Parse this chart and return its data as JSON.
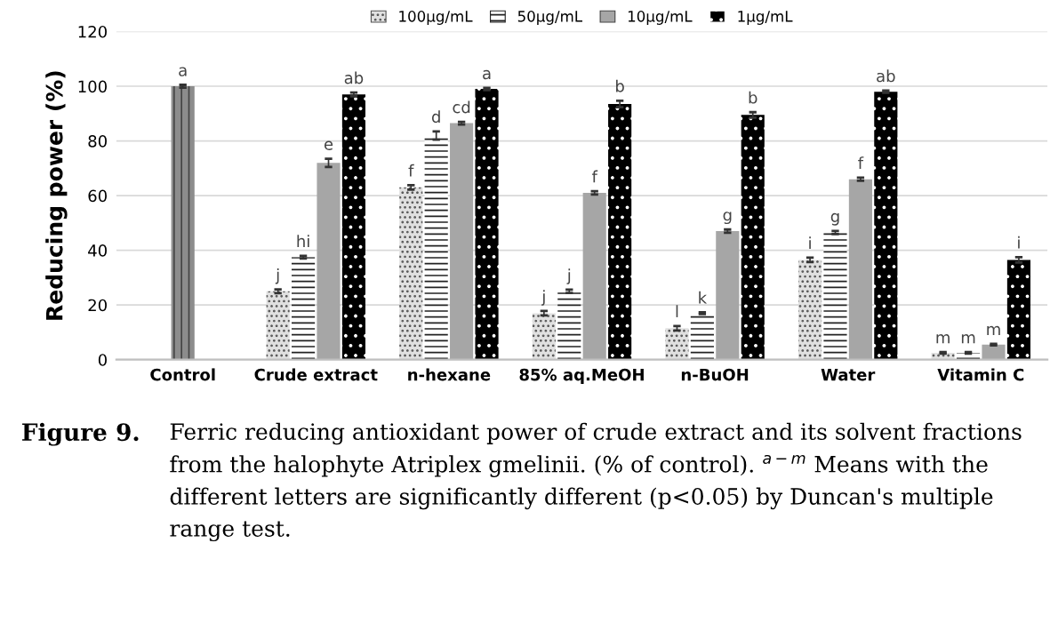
{
  "chart_data": {
    "type": "bar",
    "ylabel": "Reducing power (%)",
    "categories": [
      "Control",
      "Crude extract",
      "n-hexane",
      "85% aq.MeOH",
      "n-BuOH",
      "Water",
      "Vitamin C"
    ],
    "series": [
      {
        "color": "#8c8c8c",
        "values": [
          100,
          null,
          null,
          null,
          null,
          null,
          null
        ],
        "errors": [
          0.5,
          null,
          null,
          null,
          null,
          null,
          null
        ],
        "value_labels": [
          "a",
          null,
          null,
          null,
          null,
          null,
          null
        ]
      },
      {
        "name": "100μg/mL",
        "color": "#e0e0e0",
        "values": [
          null,
          25,
          63,
          17,
          11.5,
          36.5,
          2.5
        ],
        "errors": [
          null,
          0.7,
          0.8,
          0.8,
          0.8,
          0.8,
          0.3
        ],
        "value_labels": [
          null,
          "j",
          "f",
          "j",
          "l",
          "i",
          "m"
        ]
      },
      {
        "name": "50μg/mL",
        "color": "#ffffff",
        "values": [
          null,
          37.5,
          82,
          25,
          17,
          46.5,
          2.5
        ],
        "errors": [
          null,
          0.5,
          1.5,
          0.6,
          0.3,
          0.6,
          0.3
        ],
        "value_labels": [
          null,
          "hi",
          "d",
          "j",
          "k",
          "g",
          "m"
        ]
      },
      {
        "name": "10μg/mL",
        "color": "#a6a6a6",
        "values": [
          null,
          72,
          86.5,
          61,
          47,
          66,
          5.5
        ],
        "errors": [
          null,
          1.5,
          0.5,
          0.6,
          0.6,
          0.6,
          0.3
        ],
        "value_labels": [
          null,
          "e",
          "cd",
          "f",
          "g",
          "f",
          "m"
        ]
      },
      {
        "name": "1μg/mL",
        "color": "#000000",
        "values": [
          null,
          97,
          99,
          93.5,
          89.5,
          98,
          36.5
        ],
        "errors": [
          null,
          0.7,
          0.4,
          1.2,
          1.0,
          0.4,
          1.0
        ],
        "value_labels": [
          null,
          "ab",
          "a",
          "b",
          "b",
          "ab",
          "i"
        ]
      }
    ],
    "ylim": [
      0,
      120
    ],
    "yticks": [
      0,
      20,
      40,
      60,
      80,
      100,
      120
    ],
    "grid": "y",
    "legend": "top",
    "annotations": [
      "Figure 9.",
      "Ferric reducing antioxidant power of crude extract and its solvent fractions from the halophyte Atriplex gmelinii. (% of control). $^{a−m}$ Means with the different letters are significantly different (p<0.05) by Duncan's multiple range test."
    ]
  }
}
